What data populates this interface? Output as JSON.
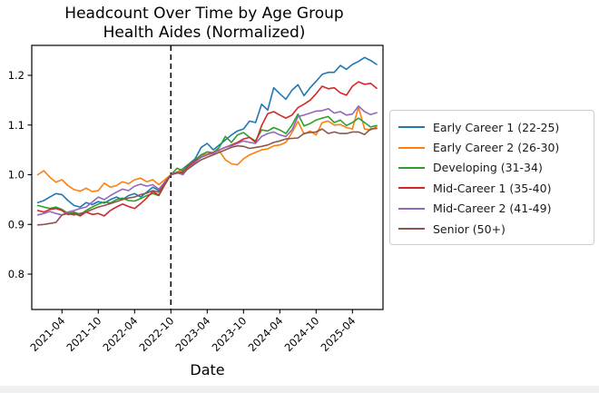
{
  "title": {
    "line1": "Headcount Over Time by Age Group",
    "line2": "Health Aides (Normalized)"
  },
  "chart_data": {
    "type": "line",
    "title": "Headcount Over Time by Age Group",
    "subtitle": "Health Aides (Normalized)",
    "xlabel": "Date",
    "ylabel": "",
    "grid": false,
    "legend_position": "right-outside",
    "ylim": [
      0.73,
      1.26
    ],
    "yticks": [
      0.8,
      0.9,
      1.0,
      1.1,
      1.2
    ],
    "xtick_labels": [
      "2021-04",
      "2021-10",
      "2022-04",
      "2022-10",
      "2023-04",
      "2023-10",
      "2024-04",
      "2024-10",
      "2025-04"
    ],
    "xtick_indices": [
      4,
      10,
      16,
      22,
      28,
      34,
      40,
      46,
      52
    ],
    "reference_line": {
      "x": "2022-10",
      "x_index": 22,
      "style": "dashed",
      "color": "#000000"
    },
    "x": [
      "2020-12",
      "2021-01",
      "2021-02",
      "2021-03",
      "2021-04",
      "2021-05",
      "2021-06",
      "2021-07",
      "2021-08",
      "2021-09",
      "2021-10",
      "2021-11",
      "2021-12",
      "2022-01",
      "2022-02",
      "2022-03",
      "2022-04",
      "2022-05",
      "2022-06",
      "2022-07",
      "2022-08",
      "2022-09",
      "2022-10",
      "2022-11",
      "2022-12",
      "2023-01",
      "2023-02",
      "2023-03",
      "2023-04",
      "2023-05",
      "2023-06",
      "2023-07",
      "2023-08",
      "2023-09",
      "2023-10",
      "2023-11",
      "2023-12",
      "2024-01",
      "2024-02",
      "2024-03",
      "2024-04",
      "2024-05",
      "2024-06",
      "2024-07",
      "2024-08",
      "2024-09",
      "2024-10",
      "2024-11",
      "2024-12",
      "2025-01",
      "2025-02",
      "2025-03",
      "2025-04",
      "2025-05",
      "2025-06",
      "2025-07",
      "2025-08"
    ],
    "series": [
      {
        "name": "Early Career 1 (22-25)",
        "color": "#1f77b4",
        "values": [
          0.944,
          0.948,
          0.955,
          0.962,
          0.96,
          0.948,
          0.938,
          0.935,
          0.944,
          0.94,
          0.946,
          0.943,
          0.95,
          0.955,
          0.95,
          0.958,
          0.962,
          0.955,
          0.965,
          0.975,
          0.968,
          0.985,
          1.0,
          1.005,
          1.012,
          1.022,
          1.032,
          1.055,
          1.063,
          1.05,
          1.06,
          1.07,
          1.08,
          1.088,
          1.092,
          1.108,
          1.105,
          1.142,
          1.13,
          1.175,
          1.163,
          1.152,
          1.17,
          1.181,
          1.159,
          1.175,
          1.188,
          1.202,
          1.206,
          1.206,
          1.22,
          1.212,
          1.222,
          1.228,
          1.236,
          1.23,
          1.222
        ]
      },
      {
        "name": "Early Career 2 (26-30)",
        "color": "#ff7f0e",
        "values": [
          1.0,
          1.008,
          0.995,
          0.985,
          0.99,
          0.978,
          0.97,
          0.967,
          0.973,
          0.966,
          0.968,
          0.983,
          0.975,
          0.978,
          0.986,
          0.982,
          0.99,
          0.993,
          0.986,
          0.99,
          0.98,
          0.99,
          1.0,
          1.005,
          1.01,
          1.018,
          1.028,
          1.038,
          1.042,
          1.045,
          1.048,
          1.03,
          1.022,
          1.02,
          1.032,
          1.04,
          1.045,
          1.05,
          1.052,
          1.058,
          1.06,
          1.065,
          1.085,
          1.107,
          1.082,
          1.088,
          1.08,
          1.105,
          1.108,
          1.1,
          1.101,
          1.095,
          1.092,
          1.136,
          1.092,
          1.09,
          1.096
        ]
      },
      {
        "name": "Developing (31-34)",
        "color": "#2ca02c",
        "values": [
          0.938,
          0.935,
          0.932,
          0.935,
          0.93,
          0.922,
          0.925,
          0.92,
          0.928,
          0.935,
          0.941,
          0.945,
          0.943,
          0.95,
          0.953,
          0.948,
          0.947,
          0.952,
          0.958,
          0.962,
          0.958,
          0.98,
          1.0,
          1.013,
          1.008,
          1.02,
          1.03,
          1.04,
          1.046,
          1.044,
          1.055,
          1.077,
          1.065,
          1.08,
          1.085,
          1.075,
          1.068,
          1.09,
          1.088,
          1.095,
          1.09,
          1.083,
          1.1,
          1.122,
          1.098,
          1.103,
          1.11,
          1.114,
          1.117,
          1.105,
          1.11,
          1.099,
          1.105,
          1.114,
          1.105,
          1.096,
          1.099
        ]
      },
      {
        "name": "Mid-Career 1 (35-40)",
        "color": "#d62728",
        "values": [
          0.928,
          0.925,
          0.93,
          0.932,
          0.928,
          0.92,
          0.922,
          0.917,
          0.925,
          0.92,
          0.922,
          0.917,
          0.928,
          0.935,
          0.941,
          0.936,
          0.932,
          0.942,
          0.953,
          0.966,
          0.959,
          0.98,
          1.0,
          1.005,
          1.003,
          1.018,
          1.028,
          1.035,
          1.04,
          1.045,
          1.05,
          1.055,
          1.06,
          1.065,
          1.072,
          1.075,
          1.065,
          1.099,
          1.123,
          1.127,
          1.12,
          1.114,
          1.12,
          1.135,
          1.142,
          1.15,
          1.163,
          1.178,
          1.173,
          1.175,
          1.165,
          1.16,
          1.178,
          1.187,
          1.182,
          1.184,
          1.174
        ]
      },
      {
        "name": "Mid-Career 2 (41-49)",
        "color": "#9467bd",
        "values": [
          0.919,
          0.922,
          0.926,
          0.922,
          0.919,
          0.925,
          0.928,
          0.932,
          0.935,
          0.945,
          0.955,
          0.95,
          0.958,
          0.965,
          0.971,
          0.968,
          0.977,
          0.981,
          0.977,
          0.98,
          0.971,
          0.985,
          1.0,
          1.004,
          1.0,
          1.015,
          1.025,
          1.035,
          1.04,
          1.043,
          1.05,
          1.055,
          1.058,
          1.063,
          1.068,
          1.065,
          1.063,
          1.077,
          1.083,
          1.086,
          1.08,
          1.077,
          1.09,
          1.117,
          1.12,
          1.124,
          1.128,
          1.129,
          1.133,
          1.124,
          1.127,
          1.12,
          1.122,
          1.138,
          1.127,
          1.121,
          1.125
        ]
      },
      {
        "name": "Senior (50+)",
        "color": "#8c564b",
        "values": [
          0.899,
          0.9,
          0.902,
          0.904,
          0.919,
          0.922,
          0.919,
          0.922,
          0.925,
          0.93,
          0.935,
          0.938,
          0.942,
          0.946,
          0.95,
          0.953,
          0.955,
          0.96,
          0.963,
          0.968,
          0.965,
          0.983,
          1.0,
          1.003,
          1.006,
          1.013,
          1.022,
          1.03,
          1.035,
          1.04,
          1.045,
          1.05,
          1.055,
          1.058,
          1.057,
          1.053,
          1.055,
          1.057,
          1.06,
          1.065,
          1.068,
          1.072,
          1.073,
          1.074,
          1.083,
          1.085,
          1.086,
          1.092,
          1.083,
          1.086,
          1.083,
          1.083,
          1.086,
          1.086,
          1.081,
          1.092,
          1.093
        ]
      }
    ]
  }
}
